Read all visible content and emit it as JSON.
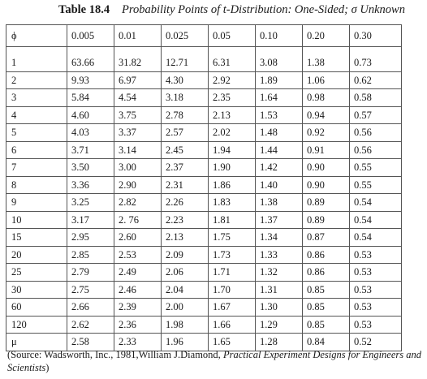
{
  "caption": {
    "label": "Table 18.4",
    "title": "Probability Points of t-Distribution: One-Sided; σ Unknown"
  },
  "table": {
    "headers": [
      "ϕ",
      "0.005",
      "0.01",
      "0.025",
      "0.05",
      "0.10",
      "0.20",
      "0.30"
    ],
    "rows": [
      [
        "1",
        "63.66",
        "31.82",
        "12.71",
        "6.31",
        "3.08",
        "1.38",
        "0.73"
      ],
      [
        "2",
        "9.93",
        "6.97",
        "4.30",
        "2.92",
        "1.89",
        "1.06",
        "0.62"
      ],
      [
        "3",
        "5.84",
        "4.54",
        "3.18",
        "2.35",
        "1.64",
        "0.98",
        "0.58"
      ],
      [
        "4",
        "4.60",
        "3.75",
        "2.78",
        "2.13",
        "1.53",
        "0.94",
        "0.57"
      ],
      [
        "5",
        "4.03",
        "3.37",
        "2.57",
        "2.02",
        "1.48",
        "0.92",
        "0.56"
      ],
      [
        "6",
        "3.71",
        "3.14",
        "2.45",
        "1.94",
        "1.44",
        "0.91",
        "0.56"
      ],
      [
        "7",
        "3.50",
        "3.00",
        "2.37",
        "1.90",
        "1.42",
        "0.90",
        "0.55"
      ],
      [
        "8",
        "3.36",
        "2.90",
        "2.31",
        "1.86",
        "1.40",
        "0.90",
        "0.55"
      ],
      [
        "9",
        "3.25",
        "2.82",
        "2.26",
        "1.83",
        "1.38",
        "0.89",
        "0.54"
      ],
      [
        "10",
        "3.17",
        "2. 76",
        "2.23",
        "1.81",
        "1.37",
        "0.89",
        "0.54"
      ],
      [
        "15",
        "2.95",
        "2.60",
        "2.13",
        "1.75",
        "1.34",
        "0.87",
        "0.54"
      ],
      [
        "20",
        "2.85",
        "2.53",
        "2.09",
        "1.73",
        "1.33",
        "0.86",
        "0.53"
      ],
      [
        "25",
        "2.79",
        "2.49",
        "2.06",
        "1.71",
        "1.32",
        "0.86",
        "0.53"
      ],
      [
        "30",
        "2.75",
        "2.46",
        "2.04",
        "1.70",
        "1.31",
        "0.85",
        "0.53"
      ],
      [
        "60",
        "2.66",
        "2.39",
        "2.00",
        "1.67",
        "1.30",
        "0.85",
        "0.53"
      ],
      [
        "120",
        "2.62",
        "2.36",
        "1.98",
        "1.66",
        "1.29",
        "0.85",
        "0.53"
      ],
      [
        "μ",
        "2.58",
        "2.33",
        "1.96",
        "1.65",
        "1.28",
        "0.84",
        "0.52"
      ]
    ]
  },
  "source": {
    "prefix": "(Source: Wadsworth, Inc., 1981,William J.Diamond,",
    "title": "Practical Experiment Designs for Engineers and Scientists",
    "suffix": ")"
  }
}
